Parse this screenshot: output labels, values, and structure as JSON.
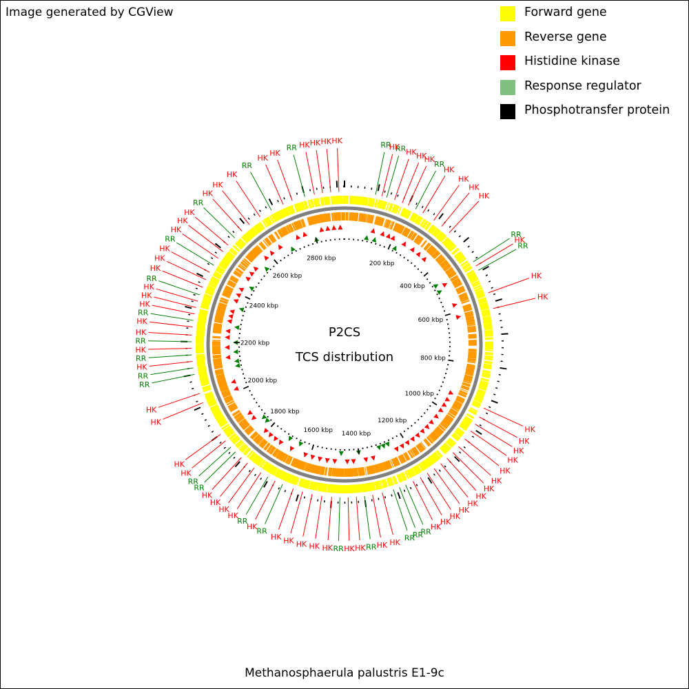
{
  "credit": "Image generated by CGView",
  "legend": [
    {
      "label": "Forward gene",
      "color": "#ffff00"
    },
    {
      "label": "Reverse gene",
      "color": "#ff9900"
    },
    {
      "label": "Histidine kinase",
      "color": "#ff0000"
    },
    {
      "label": "Response regulator",
      "color": "#80c080"
    },
    {
      "label": "Phosphotransfer protein",
      "color": "#000000"
    }
  ],
  "map": {
    "title": "P2CS",
    "subtitle": "TCS distribution",
    "organism": "Methanosphaerula palustris E1-9c",
    "genome_length_kbp": 2922,
    "tick_labels": [
      "200 kbp",
      "400 kbp",
      "600 kbp",
      "800 kbp",
      "1000 kbp",
      "1200 kbp",
      "1400 kbp",
      "1600 kbp",
      "1800 kbp",
      "2000 kbp",
      "2200 kbp",
      "2400 kbp",
      "2600 kbp",
      "2800 kbp"
    ],
    "colors": {
      "hk": "#ff0000",
      "rr": "#008000",
      "forward": "#ffff00",
      "reverse": "#ff9900",
      "backbone": "#808080",
      "tick": "#000000"
    },
    "features": [
      {
        "label": "RR",
        "pos_kbp": 95,
        "type": "rr"
      },
      {
        "label": "HK",
        "pos_kbp": 115,
        "type": "hk"
      },
      {
        "label": "RR",
        "pos_kbp": 130,
        "type": "rr"
      },
      {
        "label": "HK",
        "pos_kbp": 155,
        "type": "hk"
      },
      {
        "label": "HK",
        "pos_kbp": 180,
        "type": "hk"
      },
      {
        "label": "HK",
        "pos_kbp": 200,
        "type": "hk"
      },
      {
        "label": "RR",
        "pos_kbp": 225,
        "type": "rr"
      },
      {
        "label": "HK",
        "pos_kbp": 250,
        "type": "hk"
      },
      {
        "label": "HK",
        "pos_kbp": 290,
        "type": "hk"
      },
      {
        "label": "HK",
        "pos_kbp": 320,
        "type": "hk"
      },
      {
        "label": "HK",
        "pos_kbp": 350,
        "type": "hk"
      },
      {
        "label": "RR",
        "pos_kbp": 465,
        "type": "rr"
      },
      {
        "label": "HK",
        "pos_kbp": 480,
        "type": "hk"
      },
      {
        "label": "RR",
        "pos_kbp": 495,
        "type": "rr"
      },
      {
        "label": "HK",
        "pos_kbp": 570,
        "type": "hk"
      },
      {
        "label": "HK",
        "pos_kbp": 620,
        "type": "hk"
      },
      {
        "label": "HK",
        "pos_kbp": 930,
        "type": "hk"
      },
      {
        "label": "HK",
        "pos_kbp": 960,
        "type": "hk"
      },
      {
        "label": "HK",
        "pos_kbp": 985,
        "type": "hk"
      },
      {
        "label": "HK",
        "pos_kbp": 1010,
        "type": "hk"
      },
      {
        "label": "HK",
        "pos_kbp": 1040,
        "type": "hk"
      },
      {
        "label": "HK",
        "pos_kbp": 1070,
        "type": "hk"
      },
      {
        "label": "HK",
        "pos_kbp": 1095,
        "type": "hk"
      },
      {
        "label": "HK",
        "pos_kbp": 1120,
        "type": "hk"
      },
      {
        "label": "HK",
        "pos_kbp": 1145,
        "type": "hk"
      },
      {
        "label": "HK",
        "pos_kbp": 1170,
        "type": "hk"
      },
      {
        "label": "HK",
        "pos_kbp": 1195,
        "type": "hk"
      },
      {
        "label": "HK",
        "pos_kbp": 1220,
        "type": "hk"
      },
      {
        "label": "HK",
        "pos_kbp": 1245,
        "type": "hk"
      },
      {
        "label": "RR",
        "pos_kbp": 1270,
        "type": "rr"
      },
      {
        "label": "RR",
        "pos_kbp": 1290,
        "type": "rr"
      },
      {
        "label": "RR",
        "pos_kbp": 1310,
        "type": "rr"
      },
      {
        "label": "HK",
        "pos_kbp": 1345,
        "type": "hk"
      },
      {
        "label": "HK",
        "pos_kbp": 1375,
        "type": "hk"
      },
      {
        "label": "RR",
        "pos_kbp": 1400,
        "type": "rr"
      },
      {
        "label": "HK",
        "pos_kbp": 1425,
        "type": "hk"
      },
      {
        "label": "HK",
        "pos_kbp": 1450,
        "type": "hk"
      },
      {
        "label": "RR",
        "pos_kbp": 1475,
        "type": "rr"
      },
      {
        "label": "HK",
        "pos_kbp": 1500,
        "type": "hk"
      },
      {
        "label": "HK",
        "pos_kbp": 1530,
        "type": "hk"
      },
      {
        "label": "HK",
        "pos_kbp": 1560,
        "type": "hk"
      },
      {
        "label": "HK",
        "pos_kbp": 1590,
        "type": "hk"
      },
      {
        "label": "HK",
        "pos_kbp": 1620,
        "type": "hk"
      },
      {
        "label": "RR",
        "pos_kbp": 1655,
        "type": "rr"
      },
      {
        "label": "HK",
        "pos_kbp": 1680,
        "type": "hk"
      },
      {
        "label": "RR",
        "pos_kbp": 1705,
        "type": "rr"
      },
      {
        "label": "HK",
        "pos_kbp": 1730,
        "type": "hk"
      },
      {
        "label": "HK",
        "pos_kbp": 1755,
        "type": "hk"
      },
      {
        "label": "HK",
        "pos_kbp": 1780,
        "type": "hk"
      },
      {
        "label": "HK",
        "pos_kbp": 1805,
        "type": "hk"
      },
      {
        "label": "RR",
        "pos_kbp": 1830,
        "type": "rr"
      },
      {
        "label": "RR",
        "pos_kbp": 1850,
        "type": "rr"
      },
      {
        "label": "HK",
        "pos_kbp": 1875,
        "type": "hk"
      },
      {
        "label": "HK",
        "pos_kbp": 1900,
        "type": "hk"
      },
      {
        "label": "HK",
        "pos_kbp": 2010,
        "type": "hk"
      },
      {
        "label": "HK",
        "pos_kbp": 2040,
        "type": "hk"
      },
      {
        "label": "RR",
        "pos_kbp": 2100,
        "type": "rr"
      },
      {
        "label": "RR",
        "pos_kbp": 2120,
        "type": "rr"
      },
      {
        "label": "HK",
        "pos_kbp": 2140,
        "type": "hk"
      },
      {
        "label": "RR",
        "pos_kbp": 2160,
        "type": "rr"
      },
      {
        "label": "HK",
        "pos_kbp": 2180,
        "type": "hk"
      },
      {
        "label": "RR",
        "pos_kbp": 2200,
        "type": "rr"
      },
      {
        "label": "HK",
        "pos_kbp": 2220,
        "type": "hk"
      },
      {
        "label": "HK",
        "pos_kbp": 2245,
        "type": "hk"
      },
      {
        "label": "RR",
        "pos_kbp": 2265,
        "type": "rr"
      },
      {
        "label": "HK",
        "pos_kbp": 2285,
        "type": "hk"
      },
      {
        "label": "HK",
        "pos_kbp": 2305,
        "type": "hk"
      },
      {
        "label": "HK",
        "pos_kbp": 2325,
        "type": "hk"
      },
      {
        "label": "RR",
        "pos_kbp": 2345,
        "type": "rr"
      },
      {
        "label": "HK",
        "pos_kbp": 2370,
        "type": "hk"
      },
      {
        "label": "HK",
        "pos_kbp": 2395,
        "type": "hk"
      },
      {
        "label": "HK",
        "pos_kbp": 2420,
        "type": "hk"
      },
      {
        "label": "RR",
        "pos_kbp": 2445,
        "type": "rr"
      },
      {
        "label": "HK",
        "pos_kbp": 2470,
        "type": "hk"
      },
      {
        "label": "HK",
        "pos_kbp": 2495,
        "type": "hk"
      },
      {
        "label": "HK",
        "pos_kbp": 2520,
        "type": "hk"
      },
      {
        "label": "RR",
        "pos_kbp": 2550,
        "type": "rr"
      },
      {
        "label": "HK",
        "pos_kbp": 2580,
        "type": "hk"
      },
      {
        "label": "HK",
        "pos_kbp": 2610,
        "type": "hk"
      },
      {
        "label": "HK",
        "pos_kbp": 2650,
        "type": "hk"
      },
      {
        "label": "RR",
        "pos_kbp": 2690,
        "type": "rr"
      },
      {
        "label": "HK",
        "pos_kbp": 2730,
        "type": "hk"
      },
      {
        "label": "HK",
        "pos_kbp": 2760,
        "type": "hk"
      },
      {
        "label": "RR",
        "pos_kbp": 2800,
        "type": "rr"
      },
      {
        "label": "HK",
        "pos_kbp": 2830,
        "type": "hk"
      },
      {
        "label": "HK",
        "pos_kbp": 2855,
        "type": "hk"
      },
      {
        "label": "HK",
        "pos_kbp": 2880,
        "type": "hk"
      },
      {
        "label": "HK",
        "pos_kbp": 2905,
        "type": "hk"
      }
    ]
  }
}
